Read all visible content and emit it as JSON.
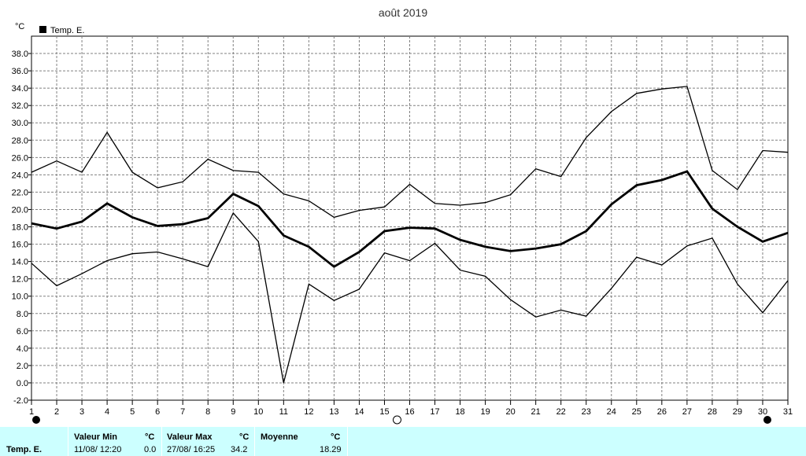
{
  "chart_data": {
    "type": "line",
    "title": "août 2019",
    "ylabel": "°C",
    "ylim": [
      -2.0,
      40.0
    ],
    "yticks": [
      -2.0,
      0.0,
      2.0,
      4.0,
      6.0,
      8.0,
      10.0,
      12.0,
      14.0,
      16.0,
      18.0,
      20.0,
      22.0,
      24.0,
      26.0,
      28.0,
      30.0,
      32.0,
      34.0,
      36.0,
      38.0
    ],
    "ytick_labels": [
      "-2.0",
      "0.0",
      "2.0",
      "4.0",
      "6.0",
      "8.0",
      "10.0",
      "12.0",
      "14.0",
      "16.0",
      "18.0",
      "20.0",
      "22.0",
      "24.0",
      "26.0",
      "28.0",
      "30.0",
      "32.0",
      "34.0",
      "36.0",
      "38.0"
    ],
    "x": [
      1,
      2,
      3,
      4,
      5,
      6,
      7,
      8,
      9,
      10,
      11,
      12,
      13,
      14,
      15,
      16,
      17,
      18,
      19,
      20,
      21,
      22,
      23,
      24,
      25,
      26,
      27,
      28,
      29,
      30,
      31
    ],
    "xtick_labels": [
      "1",
      "2",
      "3",
      "4",
      "5",
      "6",
      "7",
      "8",
      "9",
      "10",
      "11",
      "12",
      "13",
      "14",
      "15",
      "16",
      "17",
      "18",
      "19",
      "20",
      "21",
      "22",
      "23",
      "24",
      "25",
      "26",
      "27",
      "28",
      "29",
      "30",
      "31"
    ],
    "grid": true,
    "legend": {
      "label": "Temp. E.",
      "color": "#000000",
      "placement": "top-left"
    },
    "series": [
      {
        "role": "max",
        "stroke_width": 1.3,
        "values": [
          24.3,
          25.6,
          24.3,
          28.9,
          24.3,
          22.5,
          23.2,
          25.8,
          24.5,
          24.3,
          21.8,
          21.0,
          19.1,
          19.9,
          20.3,
          22.9,
          20.7,
          20.5,
          20.8,
          21.7,
          24.7,
          23.8,
          28.3,
          31.3,
          33.4,
          33.9,
          34.2,
          24.5,
          22.3,
          26.8,
          26.6
        ]
      },
      {
        "role": "mean",
        "stroke_width": 2.8,
        "values": [
          18.4,
          17.8,
          18.6,
          20.7,
          19.1,
          18.1,
          18.3,
          19.0,
          21.8,
          20.4,
          17.0,
          15.7,
          13.4,
          15.1,
          17.5,
          17.9,
          17.8,
          16.5,
          15.7,
          15.2,
          15.5,
          16.0,
          17.5,
          20.6,
          22.8,
          23.4,
          24.4,
          20.1,
          18.0,
          16.3,
          17.3
        ]
      },
      {
        "role": "min",
        "stroke_width": 1.3,
        "values": [
          13.8,
          11.2,
          12.6,
          14.1,
          14.9,
          15.1,
          14.3,
          13.4,
          19.6,
          16.3,
          0.0,
          11.4,
          9.5,
          10.8,
          15.0,
          14.1,
          16.1,
          13.0,
          12.3,
          9.6,
          7.6,
          8.4,
          7.7,
          10.9,
          14.5,
          13.6,
          15.8,
          16.7,
          11.4,
          8.1,
          11.8
        ]
      }
    ],
    "moon_phases": [
      {
        "day": 1,
        "phase": "new"
      },
      {
        "day": 15.5,
        "phase": "full"
      },
      {
        "day": 30,
        "phase": "new"
      }
    ]
  },
  "footer": {
    "row_label": "Temp. E.",
    "min_header": "Valeur Min",
    "min_unit": "°C",
    "min_date": "11/08/  12:20",
    "min_value": "0.0",
    "max_header": "Valeur Max",
    "max_unit": "°C",
    "max_date": "27/08/  16:25",
    "max_value": "34.2",
    "mean_header": "Moyenne",
    "mean_unit": "°C",
    "mean_value": "18.29"
  },
  "colors": {
    "plot_bg": "#ffffff",
    "grid": "#808080",
    "line": "#000000",
    "footer_bg": "#ccffff"
  }
}
